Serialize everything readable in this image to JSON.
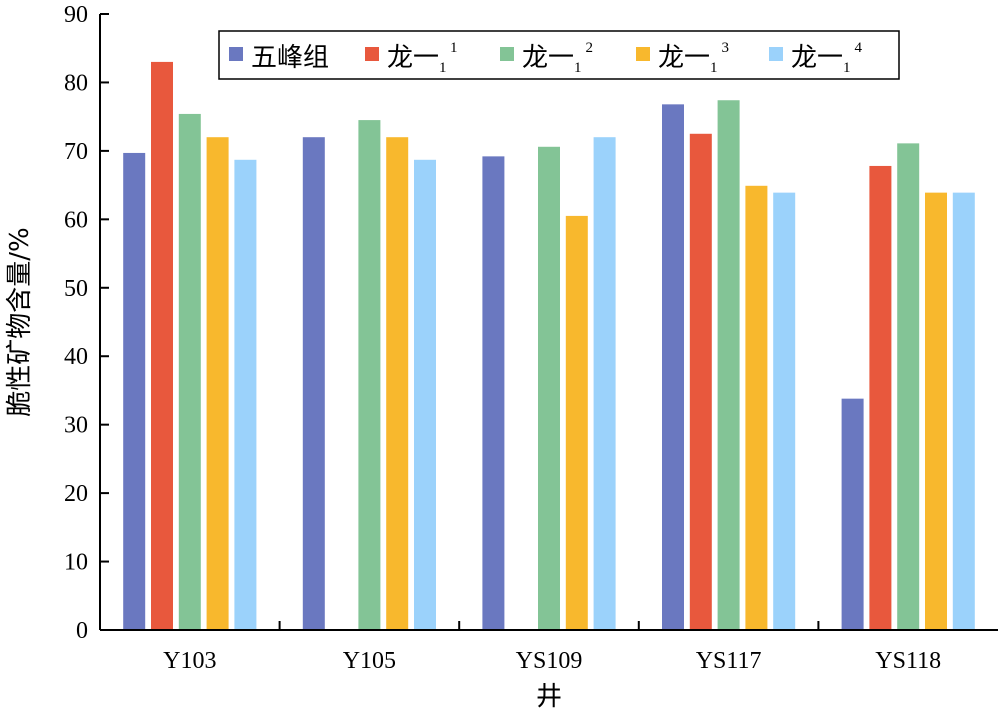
{
  "chart_data": {
    "type": "bar",
    "title": "",
    "xlabel": "井",
    "ylabel": "脆性矿物含量/%",
    "ylim": [
      0,
      90
    ],
    "yticks": [
      0,
      10,
      20,
      30,
      40,
      50,
      60,
      70,
      80,
      90
    ],
    "grid": false,
    "legend_position": "top-right",
    "categories": [
      "Y103",
      "Y105",
      "YS109",
      "YS117",
      "YS118"
    ],
    "series": [
      {
        "name": "五峰组",
        "base": "五峰组",
        "sub": "",
        "sup": "",
        "color": "#6a78c0",
        "values": [
          69.7,
          72.0,
          69.2,
          76.8,
          33.8
        ]
      },
      {
        "name": "龙一11",
        "base": "龙一",
        "sub": "1",
        "sup": "1",
        "color": "#e8583d",
        "values": [
          83.0,
          null,
          null,
          72.5,
          67.8
        ]
      },
      {
        "name": "龙一12",
        "base": "龙一",
        "sub": "1",
        "sup": "2",
        "color": "#83c496",
        "values": [
          75.4,
          74.5,
          70.6,
          77.4,
          71.1
        ]
      },
      {
        "name": "龙一13",
        "base": "龙一",
        "sub": "1",
        "sup": "3",
        "color": "#f8b82d",
        "values": [
          72.0,
          72.0,
          60.5,
          64.9,
          63.9
        ]
      },
      {
        "name": "龙一14",
        "base": "龙一",
        "sub": "1",
        "sup": "4",
        "color": "#9bd2fb",
        "values": [
          68.7,
          68.7,
          72.0,
          63.9,
          63.9
        ]
      }
    ]
  }
}
